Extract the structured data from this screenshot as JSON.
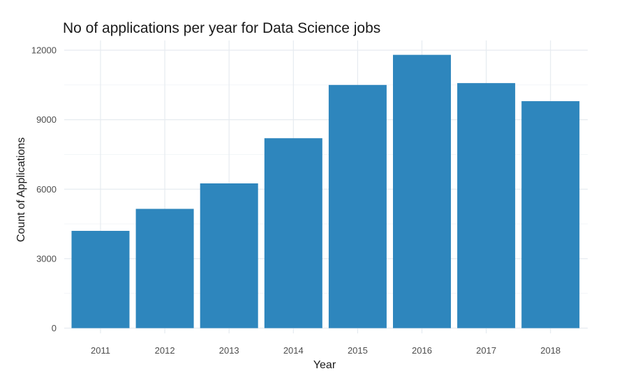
{
  "chart_data": {
    "type": "bar",
    "title": "No of applications per year for Data Science jobs",
    "xlabel": "Year",
    "ylabel": "Count of Applications",
    "categories": [
      "2011",
      "2012",
      "2013",
      "2014",
      "2015",
      "2016",
      "2017",
      "2018"
    ],
    "values": [
      4200,
      5150,
      6250,
      8200,
      10500,
      11800,
      10580,
      9800
    ],
    "ylim": [
      0,
      12000
    ],
    "yticks": [
      "0",
      "3000",
      "6000",
      "9000",
      "12000"
    ],
    "ytick_values": [
      0,
      3000,
      6000,
      9000,
      12000
    ],
    "bar_color": "#2e86bd",
    "grid": true,
    "legend": "none"
  }
}
